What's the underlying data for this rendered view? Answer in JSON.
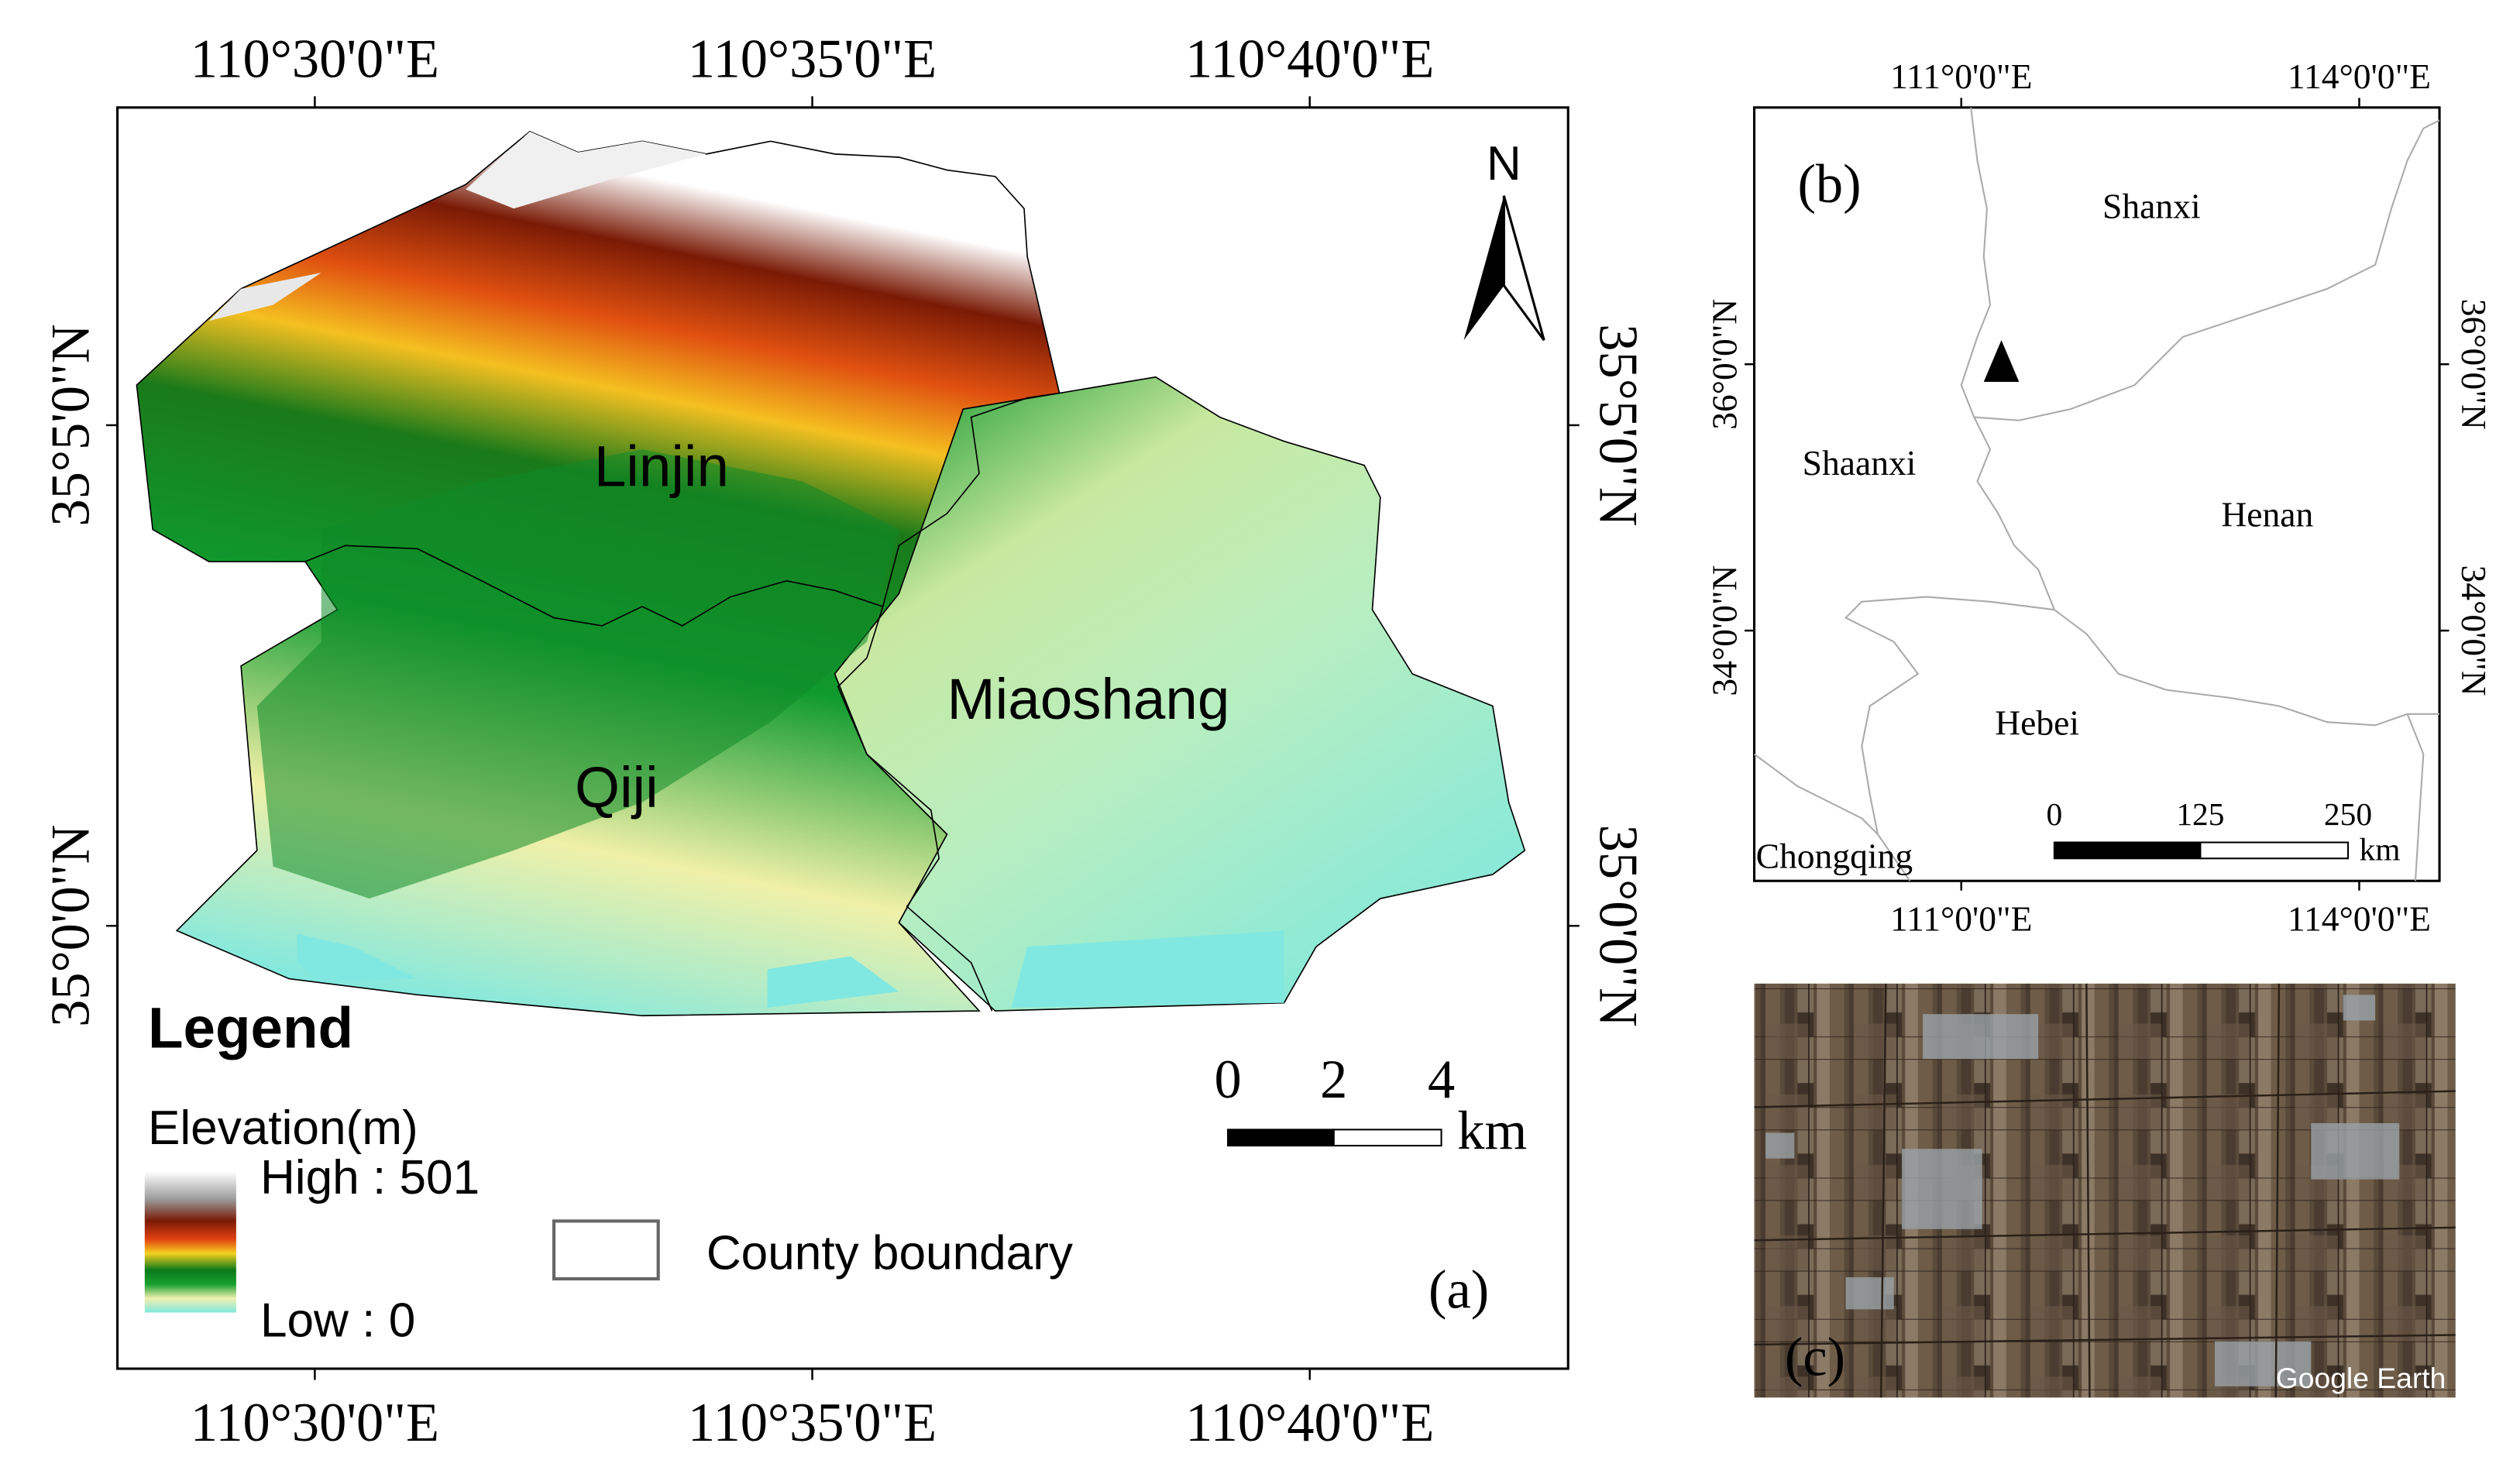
{
  "panel_a": {
    "label": "(a)",
    "coords": {
      "lon_1": "110°30'0\"E",
      "lon_2": "110°35'0\"E",
      "lon_3": "110°40'0\"E",
      "lat_1": "35°5'0\"N",
      "lat_2": "35°0'0\"N"
    },
    "north_arrow": "N",
    "regions": {
      "linjin": "Linjin",
      "qiji": "Qiji",
      "miaoshang": "Miaoshang"
    },
    "legend": {
      "title": "Legend",
      "elevation_title": "Elevation(m)",
      "high": "High : 501",
      "low": "Low : 0",
      "boundary": "County boundary"
    },
    "scale": {
      "t0": "0",
      "t1": "2",
      "t2": "4",
      "unit": "km"
    },
    "elevation_colors": [
      "#ffffff",
      "#7a1a05",
      "#e05010",
      "#f5c020",
      "#1a7a1a",
      "#0f9a2e",
      "#f0f0a8",
      "#7fe8e0"
    ]
  },
  "panel_b": {
    "label": "(b)",
    "coords": {
      "lon_1": "111°0'0\"E",
      "lon_2": "114°0'0\"E",
      "lat_1": "36°0'0\"N",
      "lat_2": "34°0'0\"N"
    },
    "provinces": {
      "shanxi": "Shanxi",
      "shaanxi": "Shaanxi",
      "henan": "Henan",
      "hebei": "Hebei",
      "chongqing": "Chongqing"
    },
    "scale": {
      "t0": "0",
      "t1": "125",
      "t2": "250",
      "unit": "km"
    }
  },
  "panel_c": {
    "label": "(c)",
    "watermark": "Google Earth"
  }
}
